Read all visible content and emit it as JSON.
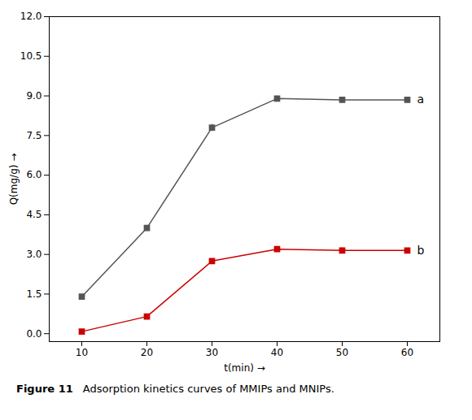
{
  "chart_data": {
    "type": "line",
    "figure_label": "Figure 11",
    "caption": "Adsorption kinetics curves of MMIPs and MNIPs.",
    "xlabel": "t(min)",
    "ylabel": "Q(mg/g)",
    "x": [
      10,
      20,
      30,
      40,
      50,
      60
    ],
    "series": [
      {
        "name": "a",
        "color": "#555555",
        "marker": "square",
        "line_style": "solid",
        "values": [
          1.4,
          4.0,
          7.8,
          8.9,
          8.85,
          8.85
        ],
        "yerr": [
          0.08,
          0.1,
          0.12,
          0.1,
          0.1,
          0.1
        ]
      },
      {
        "name": "b",
        "color": "#cc0000",
        "marker": "square",
        "line_style": "solid",
        "values": [
          0.08,
          0.65,
          2.75,
          3.2,
          3.15,
          3.15
        ],
        "yerr": [
          0.05,
          0.06,
          0.08,
          0.1,
          0.1,
          0.08
        ]
      }
    ],
    "xlim": [
      5,
      65
    ],
    "ylim": [
      -0.3,
      12.0
    ],
    "xticks": [
      10,
      20,
      30,
      40,
      50,
      60
    ],
    "yticks": [
      {
        "value": 0,
        "label": "0.0"
      },
      1.5,
      {
        "value": 3,
        "label": "3.0"
      },
      4.5,
      {
        "value": 6,
        "label": "6.0"
      },
      7.5,
      {
        "value": 9,
        "label": "9.0"
      },
      10.5,
      {
        "value": 12,
        "label": "12.0"
      }
    ],
    "grid": false
  }
}
